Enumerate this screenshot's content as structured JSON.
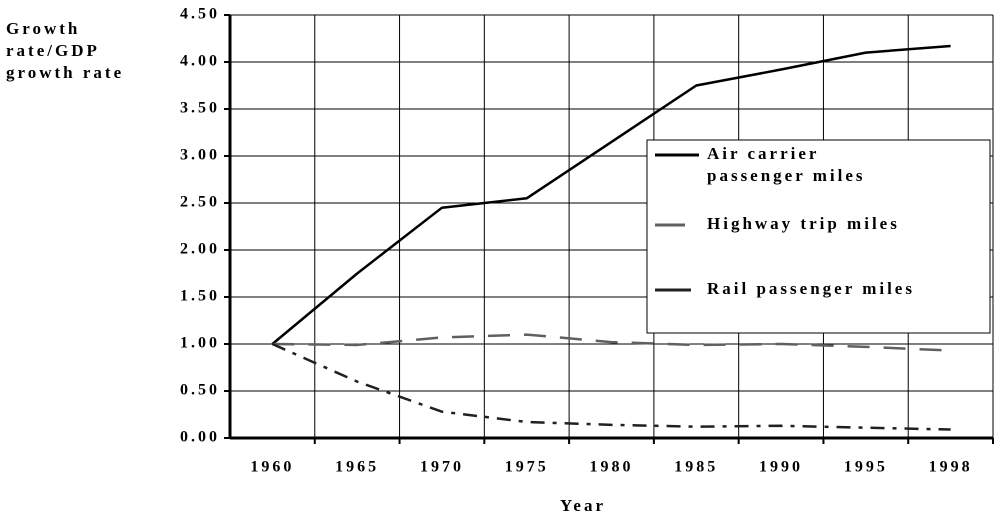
{
  "chart_data": {
    "type": "line",
    "y_label": "Growth rate/GDP growth rate",
    "x_label": "Year",
    "categories": [
      "1960",
      "1965",
      "1970",
      "1975",
      "1980",
      "1985",
      "1990",
      "1995",
      "1998"
    ],
    "series": [
      {
        "name": "Air carrier passenger miles",
        "color": "#000000",
        "values": [
          1.0,
          1.75,
          2.45,
          2.55,
          3.15,
          3.75,
          3.92,
          4.1,
          4.17
        ]
      },
      {
        "name": "Highway trip miles",
        "color": "#606060",
        "values": [
          1.0,
          0.99,
          1.07,
          1.1,
          1.02,
          0.99,
          1.0,
          0.97,
          0.93
        ]
      },
      {
        "name": "Rail passenger miles",
        "color": "#202020",
        "values": [
          1.0,
          0.6,
          0.28,
          0.17,
          0.14,
          0.12,
          0.13,
          0.11,
          0.09
        ]
      }
    ],
    "ylim": [
      0,
      4.5
    ],
    "yticks": [
      {
        "value": 0,
        "label": "0.00"
      },
      {
        "value": 0.5,
        "label": "0.50"
      },
      {
        "value": 1,
        "label": "1.00"
      },
      {
        "value": 1.5,
        "label": "1.50"
      },
      {
        "value": 2,
        "label": "2.00"
      },
      {
        "value": 2.5,
        "label": "2.50"
      },
      {
        "value": 3,
        "label": "3.00"
      },
      {
        "value": 3.5,
        "label": "3.50"
      },
      {
        "value": 4,
        "label": "4.00"
      },
      {
        "value": 4.5,
        "label": "4.50"
      }
    ],
    "grid": true,
    "legend": "right"
  }
}
